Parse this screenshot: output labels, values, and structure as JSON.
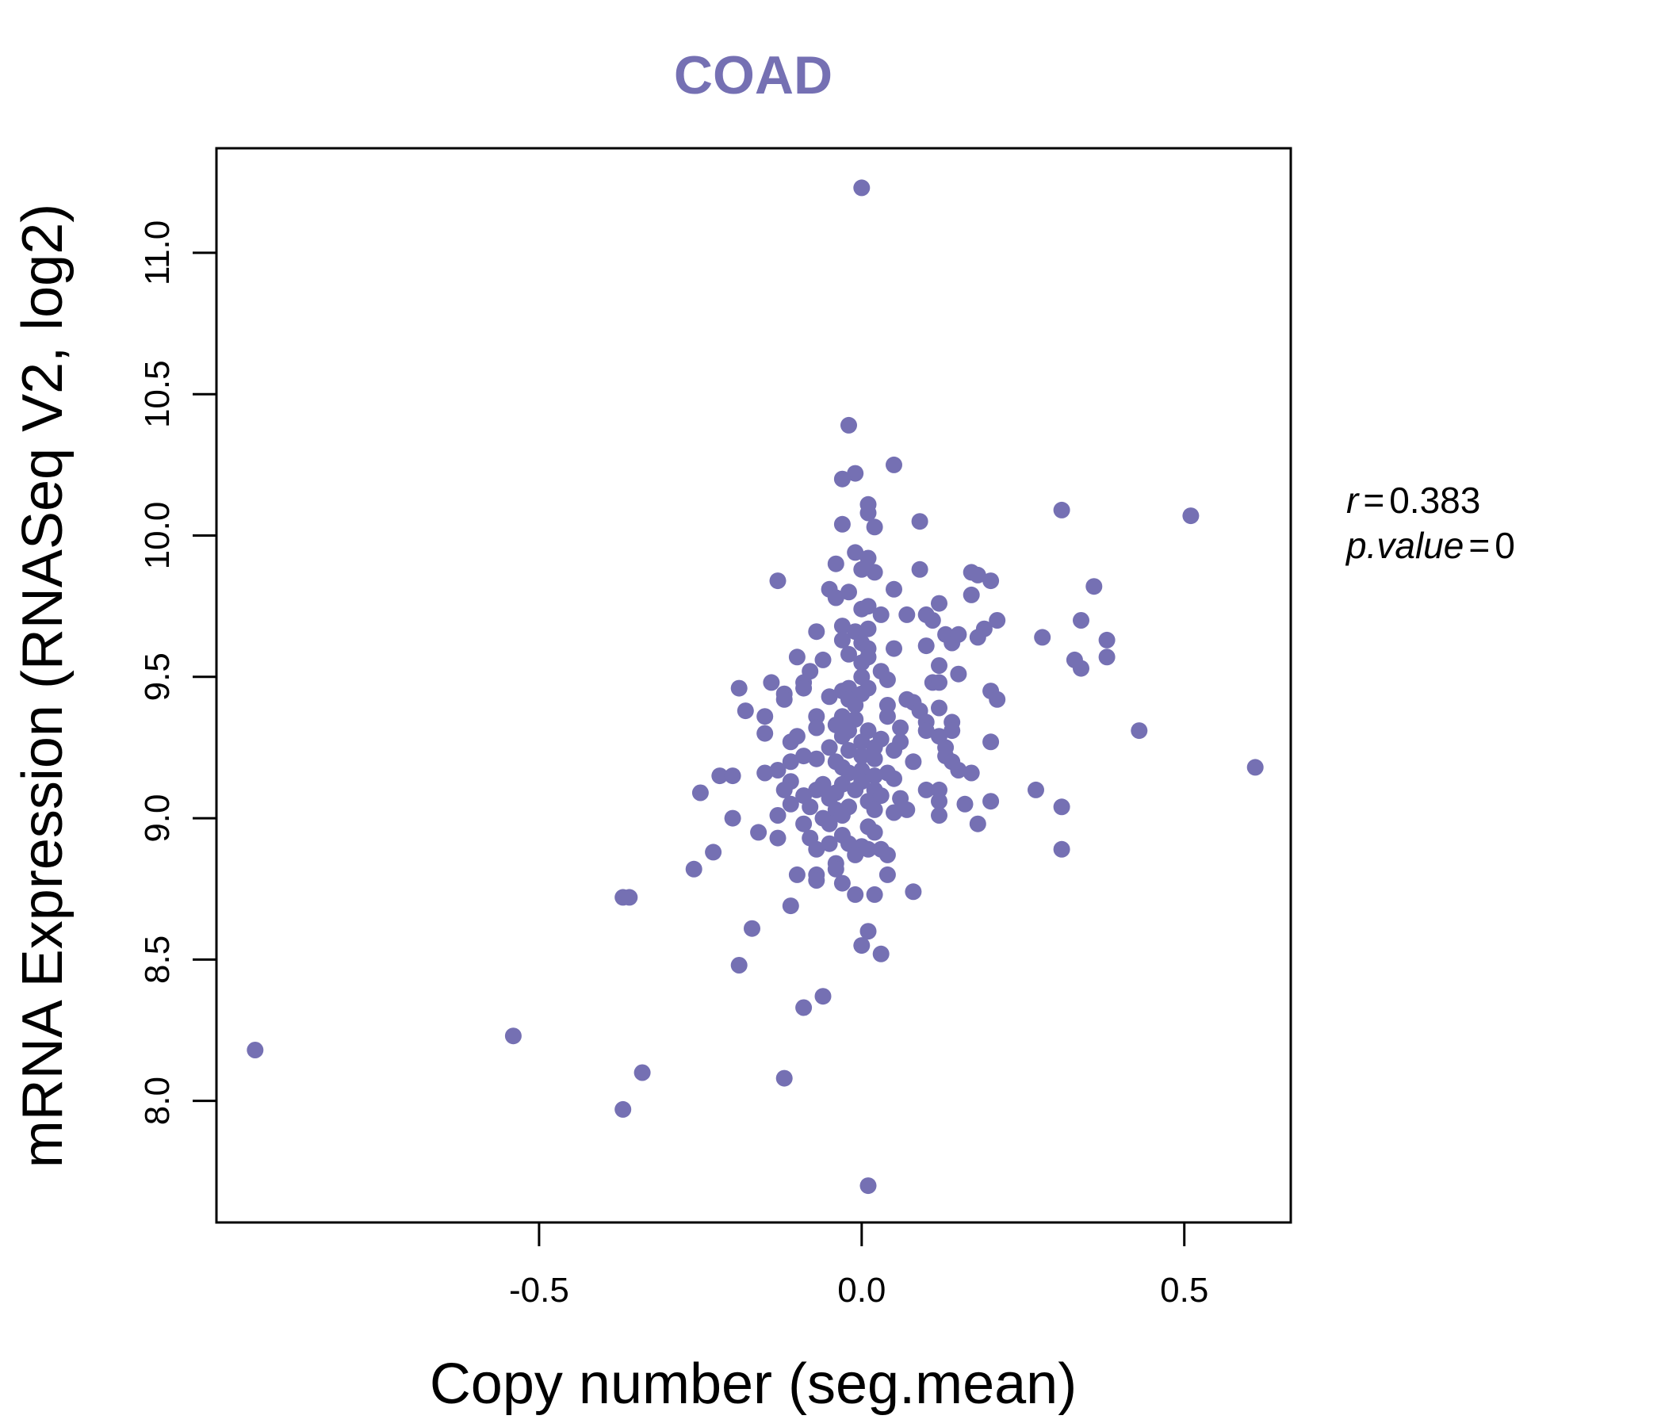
{
  "chart_data": {
    "type": "scatter",
    "title": "COAD",
    "xlabel": "Copy number (seg.mean)",
    "ylabel": "mRNA Expression (RNASeq V2, log2)",
    "xlim": [
      -1.0,
      0.665
    ],
    "ylim": [
      7.57,
      11.37
    ],
    "xticks": [
      -0.5,
      0.0,
      0.5
    ],
    "xtick_labels": [
      "-0.5",
      "0.0",
      "0.5"
    ],
    "yticks": [
      8.0,
      8.5,
      9.0,
      9.5,
      10.0,
      10.5,
      11.0
    ],
    "ytick_labels": [
      "8.0",
      "8.5",
      "9.0",
      "9.5",
      "10.0",
      "10.5",
      "11.0"
    ],
    "point_color": "#7570b3",
    "annotation": {
      "r_label": "r",
      "r_value": "0.383",
      "p_label": "p.value",
      "p_value": "0"
    },
    "points": [
      [
        0.0,
        11.23
      ],
      [
        -0.02,
        10.39
      ],
      [
        -0.01,
        10.22
      ],
      [
        -0.03,
        10.2
      ],
      [
        0.05,
        10.25
      ],
      [
        0.01,
        10.11
      ],
      [
        0.01,
        10.08
      ],
      [
        -0.03,
        10.04
      ],
      [
        0.02,
        10.03
      ],
      [
        0.09,
        10.05
      ],
      [
        0.31,
        10.09
      ],
      [
        0.51,
        10.07
      ],
      [
        -0.01,
        9.94
      ],
      [
        -0.04,
        9.9
      ],
      [
        0.01,
        9.92
      ],
      [
        0.0,
        9.88
      ],
      [
        0.02,
        9.87
      ],
      [
        0.09,
        9.88
      ],
      [
        0.17,
        9.87
      ],
      [
        0.2,
        9.84
      ],
      [
        0.18,
        9.86
      ],
      [
        -0.13,
        9.84
      ],
      [
        -0.05,
        9.81
      ],
      [
        -0.02,
        9.8
      ],
      [
        0.05,
        9.81
      ],
      [
        0.17,
        9.79
      ],
      [
        0.36,
        9.82
      ],
      [
        -0.04,
        9.78
      ],
      [
        0.0,
        9.74
      ],
      [
        0.01,
        9.75
      ],
      [
        0.03,
        9.72
      ],
      [
        0.07,
        9.72
      ],
      [
        0.1,
        9.72
      ],
      [
        0.12,
        9.76
      ],
      [
        0.21,
        9.7
      ],
      [
        0.34,
        9.7
      ],
      [
        -0.03,
        9.68
      ],
      [
        -0.01,
        9.66
      ],
      [
        -0.07,
        9.66
      ],
      [
        0.01,
        9.67
      ],
      [
        0.11,
        9.7
      ],
      [
        0.19,
        9.67
      ],
      [
        0.28,
        9.64
      ],
      [
        0.38,
        9.63
      ],
      [
        0.18,
        9.64
      ],
      [
        -0.03,
        9.63
      ],
      [
        0.0,
        9.62
      ],
      [
        0.01,
        9.6
      ],
      [
        0.05,
        9.6
      ],
      [
        0.1,
        9.61
      ],
      [
        0.13,
        9.65
      ],
      [
        0.14,
        9.62
      ],
      [
        0.15,
        9.65
      ],
      [
        -0.1,
        9.57
      ],
      [
        -0.06,
        9.56
      ],
      [
        -0.02,
        9.58
      ],
      [
        0.0,
        9.55
      ],
      [
        0.01,
        9.57
      ],
      [
        0.33,
        9.56
      ],
      [
        0.34,
        9.53
      ],
      [
        0.38,
        9.57
      ],
      [
        -0.08,
        9.52
      ],
      [
        -0.09,
        9.48
      ],
      [
        0.0,
        9.5
      ],
      [
        0.03,
        9.52
      ],
      [
        0.04,
        9.49
      ],
      [
        0.11,
        9.48
      ],
      [
        0.12,
        9.48
      ],
      [
        0.12,
        9.54
      ],
      [
        0.15,
        9.51
      ],
      [
        -0.14,
        9.48
      ],
      [
        -0.19,
        9.46
      ],
      [
        -0.12,
        9.44
      ],
      [
        -0.09,
        9.46
      ],
      [
        -0.03,
        9.45
      ],
      [
        -0.02,
        9.46
      ],
      [
        0.0,
        9.44
      ],
      [
        0.01,
        9.46
      ],
      [
        0.07,
        9.42
      ],
      [
        0.08,
        9.41
      ],
      [
        0.2,
        9.45
      ],
      [
        0.21,
        9.42
      ],
      [
        -0.12,
        9.42
      ],
      [
        -0.05,
        9.43
      ],
      [
        -0.02,
        9.42
      ],
      [
        -0.01,
        9.4
      ],
      [
        0.04,
        9.4
      ],
      [
        0.09,
        9.38
      ],
      [
        0.12,
        9.39
      ],
      [
        -0.18,
        9.38
      ],
      [
        -0.15,
        9.36
      ],
      [
        -0.07,
        9.36
      ],
      [
        -0.03,
        9.36
      ],
      [
        -0.01,
        9.35
      ],
      [
        0.04,
        9.36
      ],
      [
        0.1,
        9.34
      ],
      [
        0.14,
        9.34
      ],
      [
        -0.07,
        9.32
      ],
      [
        -0.04,
        9.33
      ],
      [
        -0.02,
        9.31
      ],
      [
        0.01,
        9.31
      ],
      [
        0.06,
        9.32
      ],
      [
        0.1,
        9.31
      ],
      [
        0.14,
        9.31
      ],
      [
        0.43,
        9.31
      ],
      [
        -0.15,
        9.3
      ],
      [
        -0.1,
        9.29
      ],
      [
        -0.03,
        9.29
      ],
      [
        0.0,
        9.27
      ],
      [
        0.03,
        9.28
      ],
      [
        0.06,
        9.27
      ],
      [
        0.12,
        9.29
      ],
      [
        0.2,
        9.27
      ],
      [
        -0.11,
        9.27
      ],
      [
        -0.05,
        9.25
      ],
      [
        -0.02,
        9.24
      ],
      [
        0.02,
        9.25
      ],
      [
        0.05,
        9.24
      ],
      [
        0.13,
        9.25
      ],
      [
        -0.09,
        9.22
      ],
      [
        -0.07,
        9.21
      ],
      [
        -0.04,
        9.2
      ],
      [
        0.0,
        9.22
      ],
      [
        0.02,
        9.21
      ],
      [
        0.08,
        9.2
      ],
      [
        0.13,
        9.22
      ],
      [
        0.14,
        9.2
      ],
      [
        0.61,
        9.18
      ],
      [
        -0.11,
        9.2
      ],
      [
        -0.03,
        9.18
      ],
      [
        0.0,
        9.17
      ],
      [
        0.04,
        9.16
      ],
      [
        -0.22,
        9.15
      ],
      [
        -0.2,
        9.15
      ],
      [
        -0.15,
        9.16
      ],
      [
        -0.13,
        9.17
      ],
      [
        -0.02,
        9.16
      ],
      [
        0.02,
        9.15
      ],
      [
        0.15,
        9.17
      ],
      [
        0.17,
        9.16
      ],
      [
        -0.11,
        9.13
      ],
      [
        -0.06,
        9.12
      ],
      [
        -0.03,
        9.12
      ],
      [
        0.0,
        9.13
      ],
      [
        0.05,
        9.14
      ],
      [
        -0.12,
        9.1
      ],
      [
        -0.07,
        9.1
      ],
      [
        -0.04,
        9.09
      ],
      [
        -0.01,
        9.1
      ],
      [
        0.02,
        9.1
      ],
      [
        0.1,
        9.1
      ],
      [
        0.12,
        9.1
      ],
      [
        0.27,
        9.1
      ],
      [
        -0.25,
        9.09
      ],
      [
        -0.09,
        9.08
      ],
      [
        -0.05,
        9.07
      ],
      [
        0.01,
        9.06
      ],
      [
        0.03,
        9.08
      ],
      [
        0.06,
        9.07
      ],
      [
        0.12,
        9.06
      ],
      [
        0.16,
        9.05
      ],
      [
        0.2,
        9.06
      ],
      [
        0.31,
        9.04
      ],
      [
        -0.11,
        9.05
      ],
      [
        -0.08,
        9.04
      ],
      [
        -0.04,
        9.03
      ],
      [
        -0.02,
        9.04
      ],
      [
        0.02,
        9.03
      ],
      [
        0.07,
        9.03
      ],
      [
        -0.13,
        9.01
      ],
      [
        -0.06,
        9.0
      ],
      [
        -0.03,
        9.01
      ],
      [
        0.05,
        9.02
      ],
      [
        0.12,
        9.01
      ],
      [
        -0.2,
        9.0
      ],
      [
        -0.09,
        8.98
      ],
      [
        -0.05,
        8.98
      ],
      [
        0.01,
        8.97
      ],
      [
        0.18,
        8.98
      ],
      [
        -0.16,
        8.95
      ],
      [
        -0.13,
        8.93
      ],
      [
        -0.08,
        8.93
      ],
      [
        -0.03,
        8.94
      ],
      [
        0.02,
        8.95
      ],
      [
        -0.05,
        8.91
      ],
      [
        -0.02,
        8.91
      ],
      [
        0.0,
        8.9
      ],
      [
        0.01,
        8.89
      ],
      [
        0.03,
        8.89
      ],
      [
        -0.23,
        8.88
      ],
      [
        -0.07,
        8.89
      ],
      [
        -0.01,
        8.87
      ],
      [
        0.04,
        8.87
      ],
      [
        0.31,
        8.89
      ],
      [
        -0.04,
        8.84
      ],
      [
        -0.04,
        8.82
      ],
      [
        -0.26,
        8.82
      ],
      [
        -0.1,
        8.8
      ],
      [
        -0.07,
        8.8
      ],
      [
        -0.07,
        8.78
      ],
      [
        0.04,
        8.8
      ],
      [
        -0.03,
        8.77
      ],
      [
        -0.37,
        8.72
      ],
      [
        -0.36,
        8.72
      ],
      [
        -0.01,
        8.73
      ],
      [
        0.02,
        8.73
      ],
      [
        0.08,
        8.74
      ],
      [
        -0.11,
        8.69
      ],
      [
        0.01,
        8.6
      ],
      [
        -0.17,
        8.61
      ],
      [
        0.0,
        8.55
      ],
      [
        0.03,
        8.52
      ],
      [
        -0.19,
        8.48
      ],
      [
        -0.06,
        8.37
      ],
      [
        -0.09,
        8.33
      ],
      [
        -0.54,
        8.23
      ],
      [
        -0.94,
        8.18
      ],
      [
        -0.34,
        8.1
      ],
      [
        -0.12,
        8.08
      ],
      [
        -0.37,
        7.97
      ],
      [
        0.01,
        7.7
      ]
    ]
  }
}
